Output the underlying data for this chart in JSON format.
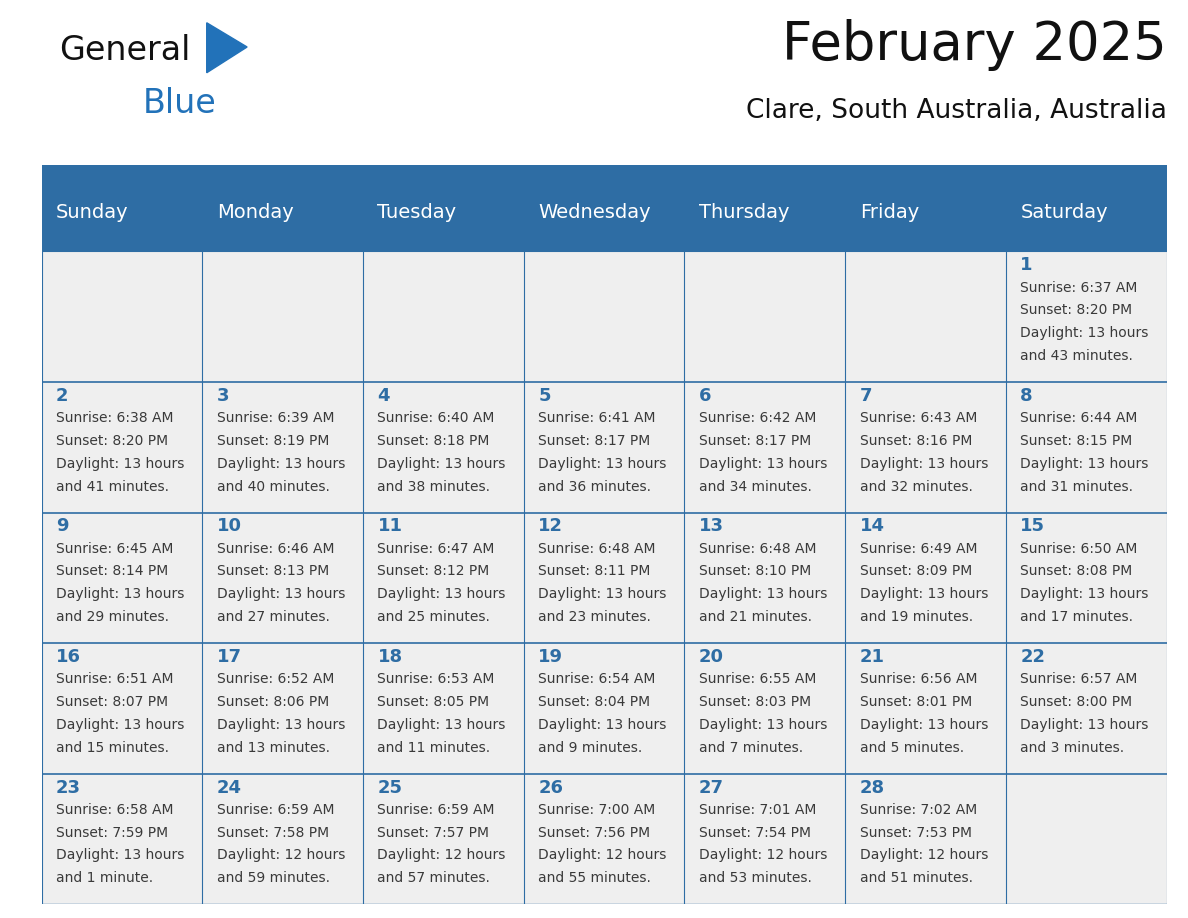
{
  "title": "February 2025",
  "subtitle": "Clare, South Australia, Australia",
  "days_of_week": [
    "Sunday",
    "Monday",
    "Tuesday",
    "Wednesday",
    "Thursday",
    "Friday",
    "Saturday"
  ],
  "header_bg": "#2E6DA4",
  "header_text_color": "#FFFFFF",
  "cell_bg": "#EFEFEF",
  "border_color": "#2E6DA4",
  "text_color_day": "#2E6DA4",
  "text_color_info": "#3a3a3a",
  "calendar": [
    [
      null,
      null,
      null,
      null,
      null,
      null,
      {
        "day": 1,
        "sunrise": "6:37 AM",
        "sunset": "8:20 PM",
        "daylight_h": "13 hours",
        "daylight_m": "and 43 minutes."
      }
    ],
    [
      {
        "day": 2,
        "sunrise": "6:38 AM",
        "sunset": "8:20 PM",
        "daylight_h": "13 hours",
        "daylight_m": "and 41 minutes."
      },
      {
        "day": 3,
        "sunrise": "6:39 AM",
        "sunset": "8:19 PM",
        "daylight_h": "13 hours",
        "daylight_m": "and 40 minutes."
      },
      {
        "day": 4,
        "sunrise": "6:40 AM",
        "sunset": "8:18 PM",
        "daylight_h": "13 hours",
        "daylight_m": "and 38 minutes."
      },
      {
        "day": 5,
        "sunrise": "6:41 AM",
        "sunset": "8:17 PM",
        "daylight_h": "13 hours",
        "daylight_m": "and 36 minutes."
      },
      {
        "day": 6,
        "sunrise": "6:42 AM",
        "sunset": "8:17 PM",
        "daylight_h": "13 hours",
        "daylight_m": "and 34 minutes."
      },
      {
        "day": 7,
        "sunrise": "6:43 AM",
        "sunset": "8:16 PM",
        "daylight_h": "13 hours",
        "daylight_m": "and 32 minutes."
      },
      {
        "day": 8,
        "sunrise": "6:44 AM",
        "sunset": "8:15 PM",
        "daylight_h": "13 hours",
        "daylight_m": "and 31 minutes."
      }
    ],
    [
      {
        "day": 9,
        "sunrise": "6:45 AM",
        "sunset": "8:14 PM",
        "daylight_h": "13 hours",
        "daylight_m": "and 29 minutes."
      },
      {
        "day": 10,
        "sunrise": "6:46 AM",
        "sunset": "8:13 PM",
        "daylight_h": "13 hours",
        "daylight_m": "and 27 minutes."
      },
      {
        "day": 11,
        "sunrise": "6:47 AM",
        "sunset": "8:12 PM",
        "daylight_h": "13 hours",
        "daylight_m": "and 25 minutes."
      },
      {
        "day": 12,
        "sunrise": "6:48 AM",
        "sunset": "8:11 PM",
        "daylight_h": "13 hours",
        "daylight_m": "and 23 minutes."
      },
      {
        "day": 13,
        "sunrise": "6:48 AM",
        "sunset": "8:10 PM",
        "daylight_h": "13 hours",
        "daylight_m": "and 21 minutes."
      },
      {
        "day": 14,
        "sunrise": "6:49 AM",
        "sunset": "8:09 PM",
        "daylight_h": "13 hours",
        "daylight_m": "and 19 minutes."
      },
      {
        "day": 15,
        "sunrise": "6:50 AM",
        "sunset": "8:08 PM",
        "daylight_h": "13 hours",
        "daylight_m": "and 17 minutes."
      }
    ],
    [
      {
        "day": 16,
        "sunrise": "6:51 AM",
        "sunset": "8:07 PM",
        "daylight_h": "13 hours",
        "daylight_m": "and 15 minutes."
      },
      {
        "day": 17,
        "sunrise": "6:52 AM",
        "sunset": "8:06 PM",
        "daylight_h": "13 hours",
        "daylight_m": "and 13 minutes."
      },
      {
        "day": 18,
        "sunrise": "6:53 AM",
        "sunset": "8:05 PM",
        "daylight_h": "13 hours",
        "daylight_m": "and 11 minutes."
      },
      {
        "day": 19,
        "sunrise": "6:54 AM",
        "sunset": "8:04 PM",
        "daylight_h": "13 hours",
        "daylight_m": "and 9 minutes."
      },
      {
        "day": 20,
        "sunrise": "6:55 AM",
        "sunset": "8:03 PM",
        "daylight_h": "13 hours",
        "daylight_m": "and 7 minutes."
      },
      {
        "day": 21,
        "sunrise": "6:56 AM",
        "sunset": "8:01 PM",
        "daylight_h": "13 hours",
        "daylight_m": "and 5 minutes."
      },
      {
        "day": 22,
        "sunrise": "6:57 AM",
        "sunset": "8:00 PM",
        "daylight_h": "13 hours",
        "daylight_m": "and 3 minutes."
      }
    ],
    [
      {
        "day": 23,
        "sunrise": "6:58 AM",
        "sunset": "7:59 PM",
        "daylight_h": "13 hours",
        "daylight_m": "and 1 minute."
      },
      {
        "day": 24,
        "sunrise": "6:59 AM",
        "sunset": "7:58 PM",
        "daylight_h": "12 hours",
        "daylight_m": "and 59 minutes."
      },
      {
        "day": 25,
        "sunrise": "6:59 AM",
        "sunset": "7:57 PM",
        "daylight_h": "12 hours",
        "daylight_m": "and 57 minutes."
      },
      {
        "day": 26,
        "sunrise": "7:00 AM",
        "sunset": "7:56 PM",
        "daylight_h": "12 hours",
        "daylight_m": "and 55 minutes."
      },
      {
        "day": 27,
        "sunrise": "7:01 AM",
        "sunset": "7:54 PM",
        "daylight_h": "12 hours",
        "daylight_m": "and 53 minutes."
      },
      {
        "day": 28,
        "sunrise": "7:02 AM",
        "sunset": "7:53 PM",
        "daylight_h": "12 hours",
        "daylight_m": "and 51 minutes."
      },
      null
    ]
  ],
  "logo_text1": "General",
  "logo_text2": "Blue",
  "logo_color1": "#111111",
  "logo_color2": "#2272B9",
  "logo_triangle_color": "#2272B9",
  "title_fontsize": 38,
  "subtitle_fontsize": 19,
  "header_fontsize": 14,
  "day_num_fontsize": 13,
  "info_fontsize": 10
}
